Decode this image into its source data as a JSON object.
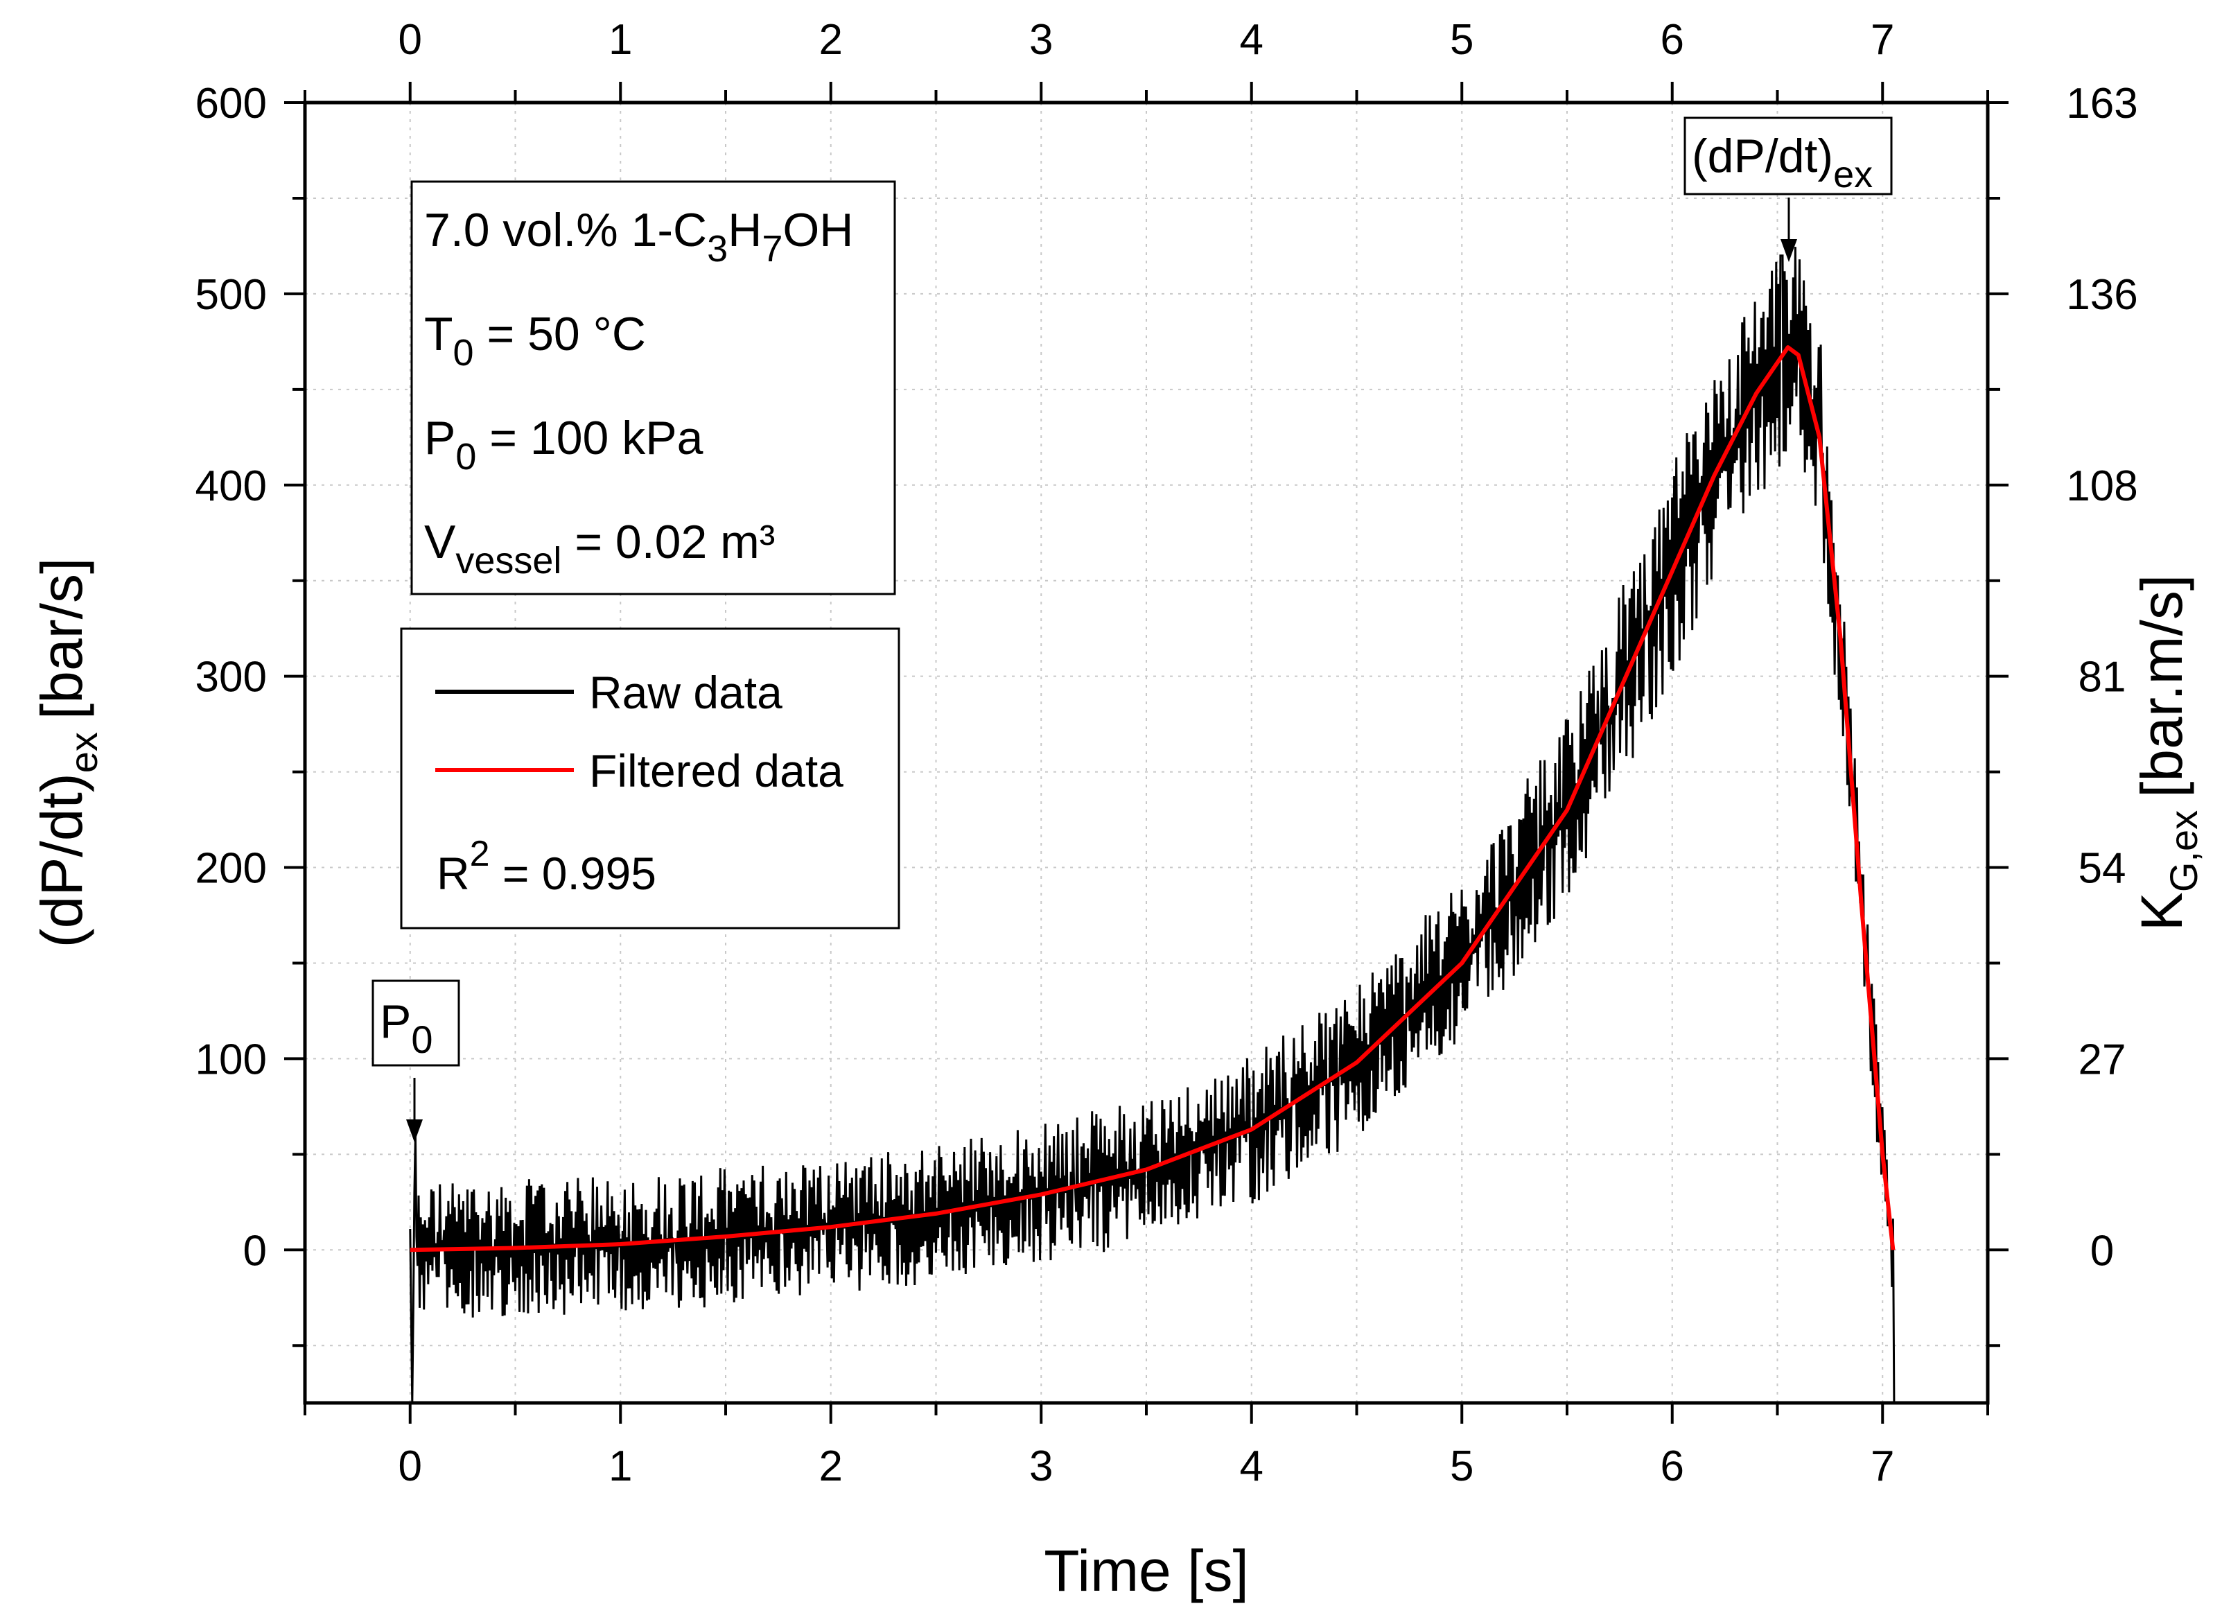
{
  "chart_data": {
    "type": "line",
    "xlabel": "Time [s]",
    "ylabel_main": "(dP/dt)",
    "ylabel_sub": "ex",
    "ylabel_unit": "[bar/s]",
    "y2label_main": "K",
    "y2label_sub": "G,ex",
    "y2label_unit": "[bar.m/s]",
    "xlim": [
      -0.5,
      7.5
    ],
    "ylim": [
      -80,
      600
    ],
    "x_ticks": [
      0,
      1,
      2,
      3,
      4,
      5,
      6,
      7
    ],
    "x_tick_labels": [
      "0",
      "1",
      "2",
      "3",
      "4",
      "5",
      "6",
      "7"
    ],
    "y_ticks": [
      0,
      100,
      200,
      300,
      400,
      500,
      600
    ],
    "y_tick_labels": [
      "0",
      "100",
      "200",
      "300",
      "400",
      "500",
      "600"
    ],
    "y2_ticks": [
      0,
      100,
      200,
      300,
      400,
      500,
      600
    ],
    "y2_tick_labels": [
      "0",
      "27",
      "54",
      "81",
      "108",
      "136",
      "163"
    ],
    "grid": true,
    "info_box": {
      "line1_main": "7.0 vol.% 1-C",
      "line1_sub1": "3",
      "line1_mid": "H",
      "line1_sub2": "7",
      "line1_end": "OH",
      "line2_main": "T",
      "line2_sub": "0",
      "line2_rest": " = 50 °C",
      "line3_main": "P",
      "line3_sub": "0",
      "line3_rest": " = 100 kPa",
      "line4_main": "V",
      "line4_sub": "vessel",
      "line4_rest": " = 0.02 m³"
    },
    "legend": {
      "position": "upper-left",
      "entries": [
        {
          "name": "Raw data",
          "color": "#000000"
        },
        {
          "name": "Filtered data",
          "color": "#ff0000"
        }
      ],
      "r2_main": "R",
      "r2_sup": "2",
      "r2_rest": " = 0.995"
    },
    "annotations": [
      {
        "main": "P",
        "sub": "0",
        "x": 0.0,
        "y": 0
      },
      {
        "main": "(dP/dt)",
        "sub": "ex",
        "x": 6.55,
        "y": 515
      }
    ],
    "series": [
      {
        "name": "Filtered data",
        "color": "#ff0000",
        "x": [
          0,
          0.5,
          1.0,
          1.5,
          2.0,
          2.5,
          3.0,
          3.5,
          4.0,
          4.5,
          5.0,
          5.5,
          5.8,
          6.0,
          6.2,
          6.4,
          6.55,
          6.6,
          6.7,
          6.8,
          6.9,
          7.0,
          7.05
        ],
        "y": [
          0,
          1,
          3,
          7,
          12,
          19,
          29,
          42,
          63,
          98,
          150,
          230,
          305,
          355,
          405,
          448,
          472,
          468,
          425,
          320,
          180,
          50,
          0
        ]
      },
      {
        "name": "Raw data",
        "color": "#000000",
        "noise_amplitude": 40,
        "peak_value": 520,
        "end_value": -80
      }
    ]
  }
}
